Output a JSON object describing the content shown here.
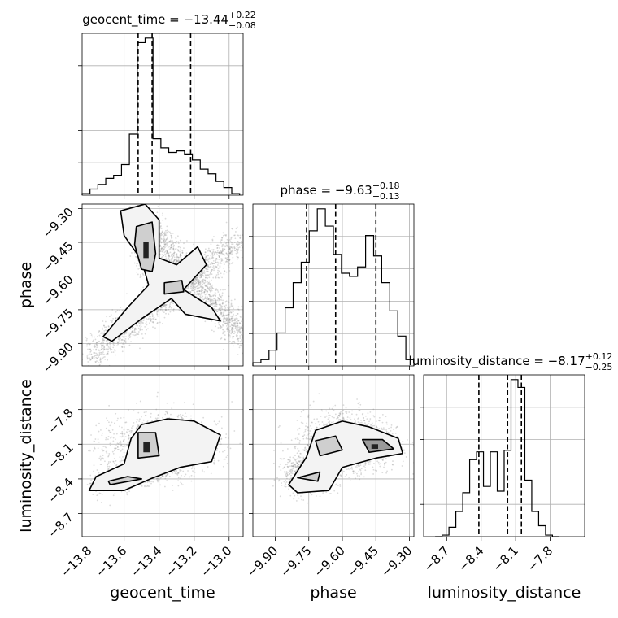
{
  "chart_data": {
    "type": "corner",
    "parameters": [
      {
        "name": "geocent_time",
        "lim": [
          -13.84,
          -12.92
        ],
        "ticks": [
          -13.8,
          -13.6,
          -13.4,
          -13.2,
          -13.0
        ],
        "tick_labels": [
          "−13.8",
          "−13.6",
          "−13.4",
          "−13.2",
          "−13.0"
        ]
      },
      {
        "name": "phase",
        "lim": [
          -10.0,
          -9.28
        ],
        "ticks": [
          -9.9,
          -9.75,
          -9.6,
          -9.45,
          -9.3
        ],
        "tick_labels": [
          "−9.90",
          "−9.75",
          "−9.60",
          "−9.45",
          "−9.30"
        ]
      },
      {
        "name": "luminosity_distance",
        "lim": [
          -8.9,
          -7.5
        ],
        "ticks": [
          -8.7,
          -8.4,
          -8.1,
          -7.8
        ],
        "tick_labels": [
          "−8.7",
          "−8.4",
          "−8.1",
          "−7.8"
        ]
      }
    ],
    "titles": [
      {
        "label": "geocent_time = −13.44",
        "plus": "+0.22",
        "minus": "−0.08"
      },
      {
        "label": "phase = −9.63",
        "plus": "+0.18",
        "minus": "−0.13"
      },
      {
        "label": "luminosity_distance = −8.17",
        "plus": "+0.12",
        "minus": "−0.25"
      }
    ],
    "quantiles": [
      [
        -13.52,
        -13.44,
        -13.22
      ],
      [
        -9.76,
        -9.63,
        -9.45
      ],
      [
        -8.42,
        -8.17,
        -8.05
      ]
    ],
    "histograms": [
      {
        "edges": [
          -13.84,
          -13.795,
          -13.75,
          -13.705,
          -13.66,
          -13.615,
          -13.57,
          -13.525,
          -13.48,
          -13.435,
          -13.39,
          -13.345,
          -13.3,
          -13.255,
          -13.21,
          -13.165,
          -13.12,
          -13.075,
          -13.03,
          -12.985,
          -12.94
        ],
        "counts": [
          1,
          4,
          7,
          11,
          13,
          20,
          40,
          100,
          103,
          37,
          31,
          28,
          29,
          27,
          23,
          17,
          14,
          9,
          5,
          1
        ]
      },
      {
        "edges": [
          -10.0,
          -9.964,
          -9.928,
          -9.892,
          -9.856,
          -9.82,
          -9.784,
          -9.748,
          -9.712,
          -9.676,
          -9.64,
          -9.604,
          -9.568,
          -9.532,
          -9.496,
          -9.46,
          -9.424,
          -9.388,
          -9.352,
          -9.316,
          -9.28
        ],
        "counts": [
          2,
          4,
          10,
          21,
          37,
          53,
          66,
          86,
          100,
          89,
          71,
          59,
          57,
          63,
          83,
          70,
          53,
          35,
          19,
          4
        ]
      },
      {
        "edges": [
          -8.8,
          -8.74,
          -8.68,
          -8.62,
          -8.56,
          -8.5,
          -8.44,
          -8.38,
          -8.32,
          -8.26,
          -8.2,
          -8.14,
          -8.08,
          -8.02,
          -7.96,
          -7.9,
          -7.84,
          -7.78,
          -7.72
        ],
        "counts": [
          0,
          1,
          6,
          16,
          28,
          49,
          54,
          32,
          54,
          29,
          55,
          100,
          95,
          36,
          16,
          7,
          1,
          0
        ]
      }
    ],
    "grid": true,
    "tick_direction": "out"
  },
  "style": {
    "line_color": "#000000",
    "grid_color": "#b0b0b0",
    "sample_color": "#7f7f7f",
    "contour_fill_levels": [
      "#f3f3f3",
      "#cfcfcf",
      "#9a9a9a",
      "#222222"
    ]
  }
}
